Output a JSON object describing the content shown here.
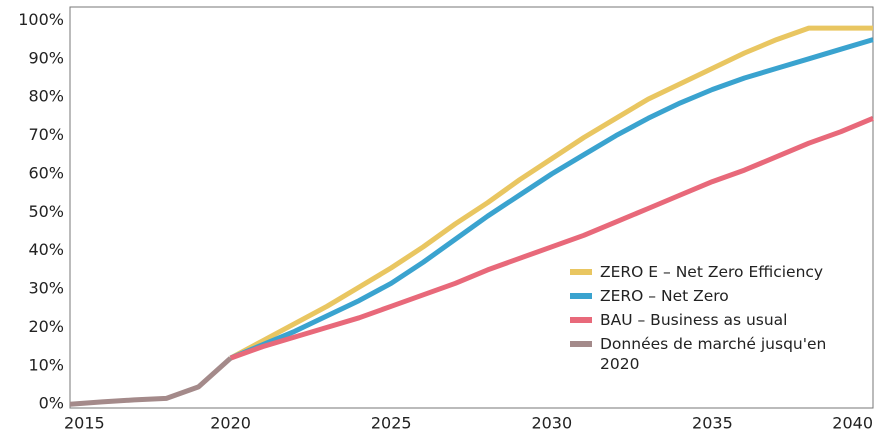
{
  "chart_data": {
    "type": "line",
    "x": [
      2015,
      2016,
      2017,
      2018,
      2019,
      2020,
      2021,
      2022,
      2023,
      2024,
      2025,
      2026,
      2027,
      2028,
      2029,
      2030,
      2031,
      2032,
      2033,
      2034,
      2035,
      2036,
      2037,
      2038,
      2039,
      2040
    ],
    "xlim": [
      2015,
      2040
    ],
    "xticks": [
      2015,
      2020,
      2025,
      2030,
      2035,
      2040
    ],
    "ylim": [
      -1,
      103.5
    ],
    "yticks": [
      {
        "value": 0,
        "label": "0%"
      },
      {
        "value": 10,
        "label": "10%"
      },
      {
        "value": 20,
        "label": "20%"
      },
      {
        "value": 30,
        "label": "30%"
      },
      {
        "value": 40,
        "label": "40%"
      },
      {
        "value": 50,
        "label": "50%"
      },
      {
        "value": 60,
        "label": "60%"
      },
      {
        "value": 70,
        "label": "70%"
      },
      {
        "value": 80,
        "label": "80%"
      },
      {
        "value": 90,
        "label": "90%"
      },
      {
        "value": 100,
        "label": "100%"
      }
    ],
    "grid": false,
    "series": [
      {
        "name": "ZERO E – Net Zero Efficiency",
        "color": "#e9c661",
        "values": [
          null,
          null,
          null,
          null,
          null,
          12,
          16.5,
          21,
          25.5,
          30.5,
          35.5,
          41,
          47,
          52.5,
          58.5,
          64,
          69.5,
          74.5,
          79.5,
          83.5,
          87.5,
          91.5,
          95,
          98,
          98,
          98
        ]
      },
      {
        "name": "ZERO – Net Zero",
        "color": "#3aa3cf",
        "values": [
          null,
          null,
          null,
          null,
          null,
          12,
          15.5,
          19,
          23,
          27,
          31.5,
          37,
          43,
          49,
          54.5,
          60,
          65,
          70,
          74.5,
          78.5,
          82,
          85,
          87.5,
          90,
          92.5,
          95
        ]
      },
      {
        "name": "BAU – Business as usual",
        "color": "#e8697a",
        "values": [
          null,
          null,
          null,
          null,
          null,
          12,
          15,
          17.5,
          20,
          22.5,
          25.5,
          28.5,
          31.5,
          35,
          38,
          41,
          44,
          47.5,
          51,
          54.5,
          58,
          61,
          64.5,
          68,
          71,
          74.5
        ]
      },
      {
        "name": "Données de marché jusqu'en 2020",
        "color": "#a48a8a",
        "values": [
          0,
          0.6,
          1.1,
          1.5,
          4.5,
          12,
          null,
          null,
          null,
          null,
          null,
          null,
          null,
          null,
          null,
          null,
          null,
          null,
          null,
          null,
          null,
          null,
          null,
          null,
          null,
          null
        ]
      }
    ]
  }
}
